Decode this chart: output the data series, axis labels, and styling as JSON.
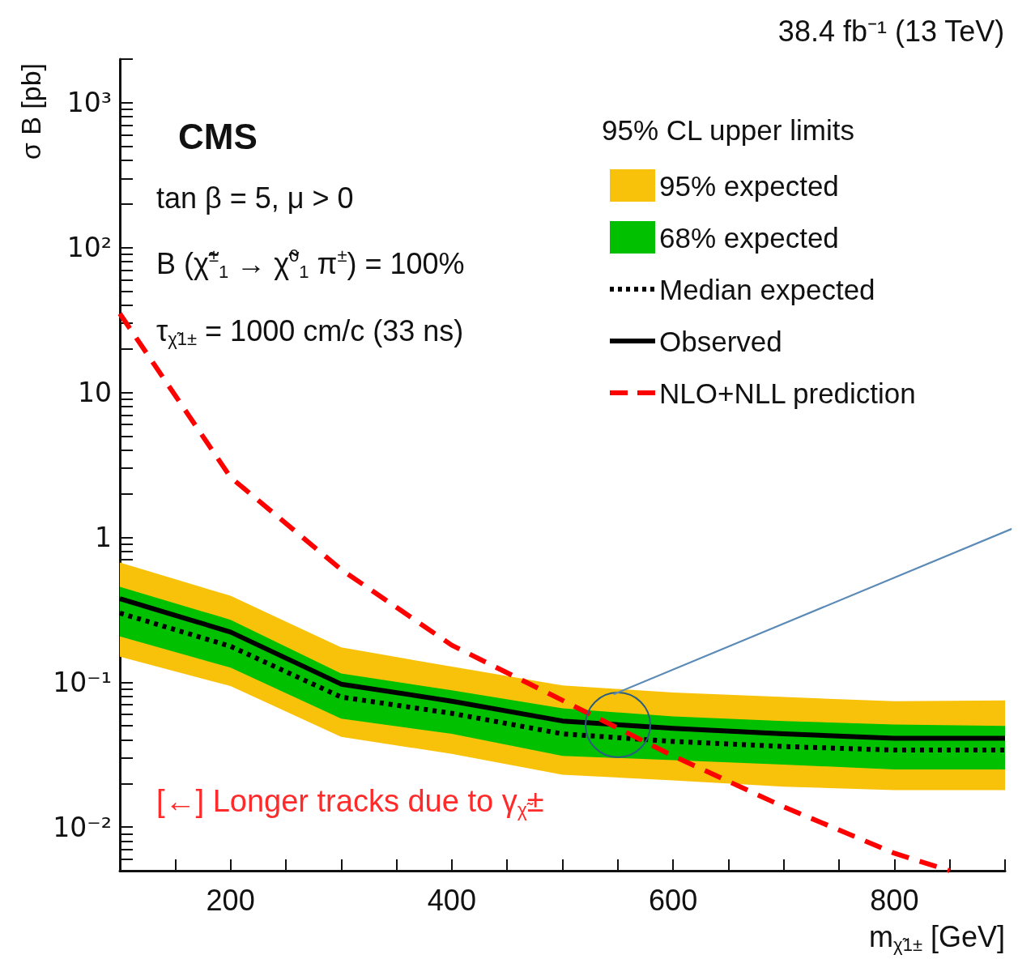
{
  "chart_data": {
    "type": "line",
    "title": "38.4 fb⁻¹ (13 TeV)",
    "xlabel": "m$_{χ̃1±}$ [GeV]",
    "ylabel": "σ B [pb]",
    "legend_title": "95% CL upper limits",
    "annotations": [
      "CMS",
      "tan β = 5, μ > 0",
      "B (χ̃$^{±}$$_{1}$ → χ̃$^{0}$$_{1}$ π$^{±}$) = 100%",
      "τ$_{χ̃1±}$ = 1000 cm/c (33 ns)",
      "[←] Longer tracks due to γ$_{χ̃}$±"
    ],
    "x": [
      100,
      200,
      300,
      400,
      500,
      600,
      700,
      800,
      900
    ],
    "series": [
      {
        "name": "95% expected",
        "type": "line",
        "color": "#f9c20a",
        "values": [
          null,
          null,
          null,
          null,
          null,
          null,
          null,
          null,
          null
        ],
        "lower": [
          0.15,
          0.094,
          0.042,
          0.032,
          0.023,
          0.021,
          0.019,
          0.018,
          0.018
        ],
        "upper": [
          0.67,
          0.395,
          0.174,
          0.128,
          0.095,
          0.085,
          0.079,
          0.074,
          0.075
        ]
      },
      {
        "name": "68% expected",
        "type": "line",
        "color": "#00c000",
        "values": [
          null,
          null,
          null,
          null,
          null,
          null,
          null,
          null,
          null
        ],
        "lower": [
          0.207,
          0.126,
          0.056,
          0.044,
          0.031,
          0.029,
          0.027,
          0.025,
          0.025
        ],
        "upper": [
          0.455,
          0.27,
          0.115,
          0.088,
          0.066,
          0.058,
          0.054,
          0.051,
          0.05
        ]
      },
      {
        "name": "Median expected",
        "color": "#000000",
        "line_style": "dotted",
        "values": [
          0.3,
          0.177,
          0.079,
          0.061,
          0.044,
          0.039,
          0.036,
          0.034,
          0.034
        ]
      },
      {
        "name": "Observed",
        "color": "#000000",
        "line_style": "solid",
        "values": [
          0.377,
          0.222,
          0.097,
          0.074,
          0.054,
          0.048,
          0.044,
          0.041,
          0.041
        ]
      },
      {
        "name": "NLO+NLL prediction",
        "color": "#ff0000",
        "line_style": "dashed",
        "x": [
          100,
          200,
          300,
          400,
          500,
          600,
          700,
          800,
          850
        ],
        "values": [
          35,
          2.6,
          0.6,
          0.18,
          0.075,
          0.031,
          0.0138,
          0.0066,
          0.005
        ]
      }
    ],
    "xlim": [
      100,
      900
    ],
    "xticks": [
      {
        "value": 100,
        "label": null
      },
      {
        "value": 150,
        "label": null
      },
      200,
      {
        "value": 250,
        "label": null
      },
      {
        "value": 300,
        "label": null
      },
      {
        "value": 350,
        "label": null
      },
      400,
      {
        "value": 450,
        "label": null
      },
      {
        "value": 500,
        "label": null
      },
      {
        "value": 550,
        "label": null
      },
      600,
      {
        "value": 650,
        "label": null
      },
      {
        "value": 700,
        "label": null
      },
      {
        "value": 750,
        "label": null
      },
      800,
      {
        "value": 850,
        "label": null
      },
      {
        "value": 900,
        "label": null
      }
    ],
    "ylim": [
      0.005,
      2000
    ],
    "yticks": [
      {
        "value": 0.006,
        "label": null
      },
      {
        "value": 0.007,
        "label": null
      },
      {
        "value": 0.008,
        "label": null
      },
      {
        "value": 0.009,
        "label": null
      },
      {
        "value": 0.01,
        "label": "10⁻²"
      },
      {
        "value": 0.02,
        "label": null
      },
      {
        "value": 0.03,
        "label": null
      },
      {
        "value": 0.04,
        "label": null
      },
      {
        "value": 0.05,
        "label": null
      },
      {
        "value": 0.06,
        "label": null
      },
      {
        "value": 0.07,
        "label": null
      },
      {
        "value": 0.08,
        "label": null
      },
      {
        "value": 0.09,
        "label": null
      },
      {
        "value": 0.1,
        "label": "10⁻¹"
      },
      {
        "value": 0.2,
        "label": null
      },
      {
        "value": 0.3,
        "label": null
      },
      {
        "value": 0.4,
        "label": null
      },
      {
        "value": 0.5,
        "label": null
      },
      {
        "value": 0.6,
        "label": null
      },
      {
        "value": 0.7,
        "label": null
      },
      {
        "value": 0.8,
        "label": null
      },
      {
        "value": 0.9,
        "label": null
      },
      1,
      {
        "value": 2,
        "label": null
      },
      {
        "value": 3,
        "label": null
      },
      {
        "value": 4,
        "label": null
      },
      {
        "value": 5,
        "label": null
      },
      {
        "value": 6,
        "label": null
      },
      {
        "value": 7,
        "label": null
      },
      {
        "value": 8,
        "label": null
      },
      {
        "value": 9,
        "label": null
      },
      10,
      {
        "value": 20,
        "label": null
      },
      {
        "value": 30,
        "label": null
      },
      {
        "value": 40,
        "label": null
      },
      {
        "value": 50,
        "label": null
      },
      {
        "value": 60,
        "label": null
      },
      {
        "value": 70,
        "label": null
      },
      {
        "value": 80,
        "label": null
      },
      {
        "value": 90,
        "label": null
      },
      {
        "value": 100,
        "label": "10²"
      },
      {
        "value": 200,
        "label": null
      },
      {
        "value": 300,
        "label": null
      },
      {
        "value": 400,
        "label": null
      },
      {
        "value": 500,
        "label": null
      },
      {
        "value": 600,
        "label": null
      },
      {
        "value": 700,
        "label": null
      },
      {
        "value": 800,
        "label": null
      },
      {
        "value": 900,
        "label": null
      },
      {
        "value": 1000,
        "label": "10³"
      },
      {
        "value": 2000,
        "label": null
      }
    ],
    "log": "y",
    "grid": false,
    "legend": "top right",
    "marker": "none"
  }
}
